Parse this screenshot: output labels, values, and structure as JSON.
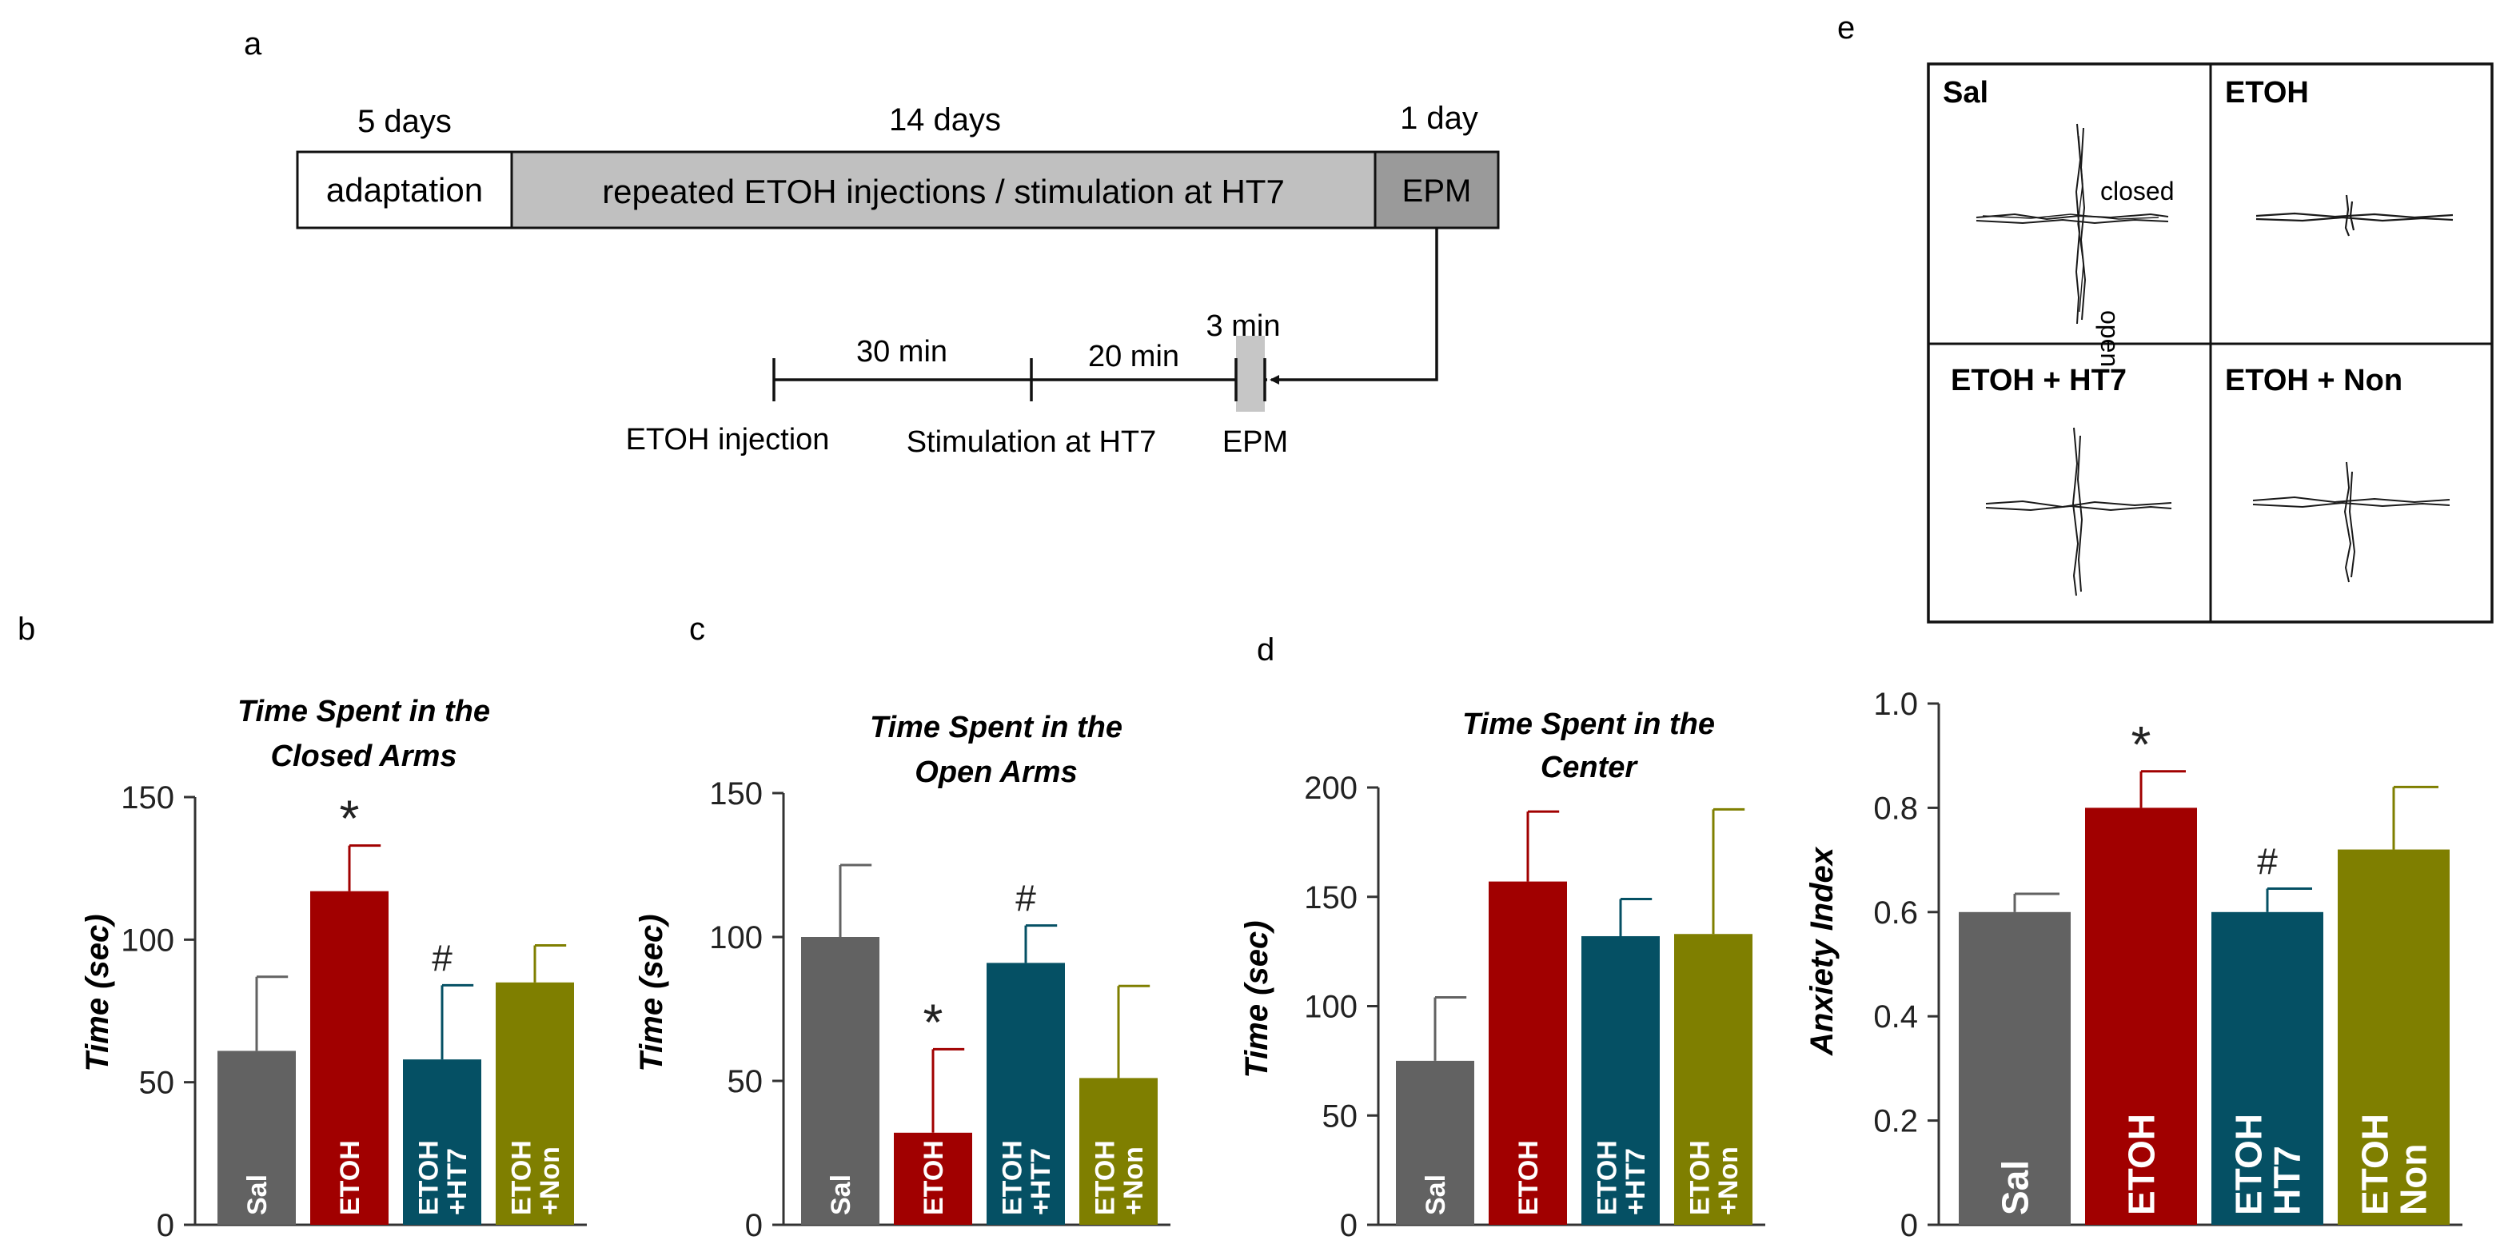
{
  "panel_letters": {
    "a": "a",
    "b": "b",
    "c": "c",
    "d": "d",
    "e": "e"
  },
  "timeline": {
    "durations": [
      "5 days",
      "14 days",
      "1 day"
    ],
    "boxes": [
      "adaptation",
      "repeated ETOH injections / stimulation at HT7",
      "EPM"
    ],
    "session": {
      "intervals": [
        "30 min",
        "20 min",
        "3 min"
      ],
      "events": [
        "ETOH injection",
        "Stimulation at HT7",
        "EPM"
      ]
    }
  },
  "tracks": {
    "cells": [
      {
        "label": "Sal",
        "annot_closed": "closed",
        "annot_open": "open"
      },
      {
        "label": "ETOH"
      },
      {
        "label": "ETOH + HT7"
      },
      {
        "label": "ETOH + Non"
      }
    ]
  },
  "colors": {
    "Sal": "#626262",
    "ETOH": "#A10000",
    "HT7": "#055064",
    "Non": "#7F7F00"
  },
  "chart_data": [
    {
      "type": "bar",
      "title": "Time Spent in the Closed Arms",
      "title_lines": [
        "Time Spent in the",
        "Closed Arms"
      ],
      "ylabel": "Time (sec)",
      "ylim": [
        0,
        150
      ],
      "yticks": [
        0,
        50,
        100,
        150
      ],
      "categories": [
        "Sal",
        "ETOH",
        "ETOH +HT7",
        "ETOH +Non"
      ],
      "bar_labels": [
        [
          "Sal"
        ],
        [
          "ETOH"
        ],
        [
          "ETOH",
          "+HT7"
        ],
        [
          "ETOH",
          "+Non"
        ]
      ],
      "values": [
        61,
        117,
        58,
        85
      ],
      "errors": [
        26,
        16,
        26,
        13
      ],
      "annotations": [
        "",
        "*",
        "#",
        ""
      ]
    },
    {
      "type": "bar",
      "title": "Time Spent in the Open Arms",
      "title_lines": [
        "Time Spent in the",
        "Open  Arms"
      ],
      "ylabel": "Time (sec)",
      "ylim": [
        0,
        150
      ],
      "yticks": [
        0,
        50,
        100,
        150
      ],
      "categories": [
        "Sal",
        "ETOH",
        "ETOH +HT7",
        "ETOH +Non"
      ],
      "bar_labels": [
        [
          "Sal"
        ],
        [
          "ETOH"
        ],
        [
          "ETOH",
          "+HT7"
        ],
        [
          "ETOH",
          "+Non"
        ]
      ],
      "values": [
        100,
        32,
        91,
        51
      ],
      "errors": [
        25,
        29,
        13,
        32
      ],
      "annotations": [
        "",
        "*",
        "#",
        ""
      ]
    },
    {
      "type": "bar",
      "title": "Time Spent in the Center",
      "title_lines": [
        "Time Spent in the",
        "Center"
      ],
      "ylabel": "Time (sec)",
      "ylim": [
        0,
        200
      ],
      "yticks": [
        0,
        50,
        100,
        150,
        200
      ],
      "categories": [
        "Sal",
        "ETOH",
        "ETOH +HT7",
        "ETOH +Non"
      ],
      "bar_labels": [
        [
          "Sal"
        ],
        [
          "ETOH"
        ],
        [
          "ETOH",
          "+HT7"
        ],
        [
          "ETOH",
          "+Non"
        ]
      ],
      "values": [
        75,
        157,
        132,
        133
      ],
      "errors": [
        29,
        32,
        17,
        57
      ],
      "annotations": [
        "",
        "",
        "",
        ""
      ]
    },
    {
      "type": "bar",
      "title": "",
      "ylabel": "Anxiety Index",
      "ylim": [
        0,
        1.0
      ],
      "yticks": [
        0,
        0.2,
        0.4,
        0.6,
        0.8,
        1.0
      ],
      "ytick_labels": [
        "0",
        "0.2",
        "0.4",
        "0.6",
        "0.8",
        "1.0"
      ],
      "categories": [
        "Sal",
        "ETOH",
        "ETOH HT7",
        "ETOH Non"
      ],
      "bar_labels": [
        [
          "Sal"
        ],
        [
          "ETOH"
        ],
        [
          "ETOH",
          "HT7"
        ],
        [
          "ETOH",
          "Non"
        ]
      ],
      "values": [
        0.6,
        0.8,
        0.6,
        0.72
      ],
      "errors": [
        0.035,
        0.07,
        0.045,
        0.12
      ],
      "annotations": [
        "",
        "*",
        "#",
        ""
      ]
    }
  ]
}
